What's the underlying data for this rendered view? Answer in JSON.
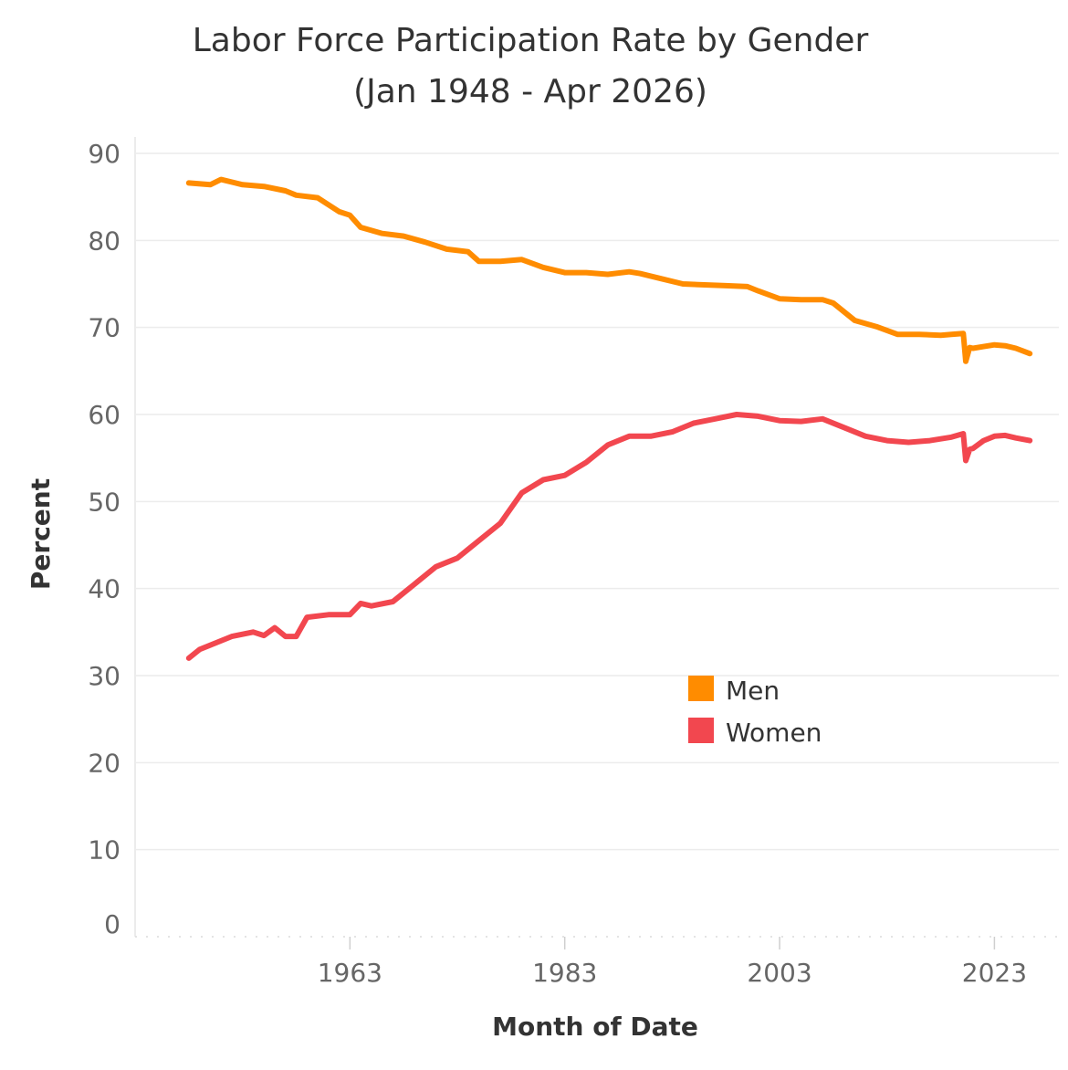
{
  "chart_data": {
    "type": "line",
    "title": [
      "Labor Force Participation Rate by Gender",
      "(Jan 1948 - Apr 2026)"
    ],
    "xlabel": "Month of Date",
    "ylabel": "Percent",
    "xlim": [
      1943,
      2029
    ],
    "ylim": [
      0,
      90
    ],
    "yticks": [
      0,
      10,
      20,
      30,
      40,
      50,
      60,
      70,
      80,
      90
    ],
    "xticks": [
      1963,
      1983,
      2003,
      2023
    ],
    "grid": true,
    "legend_position": "center-right",
    "series": [
      {
        "name": "Men",
        "color": "#ff8c00",
        "points": [
          [
            1948,
            86.6
          ],
          [
            1950,
            86.4
          ],
          [
            1951,
            87.0
          ],
          [
            1953,
            86.4
          ],
          [
            1955,
            86.2
          ],
          [
            1957,
            85.7
          ],
          [
            1958,
            85.2
          ],
          [
            1960,
            84.9
          ],
          [
            1962,
            83.3
          ],
          [
            1963,
            82.9
          ],
          [
            1964,
            81.5
          ],
          [
            1966,
            80.8
          ],
          [
            1968,
            80.5
          ],
          [
            1970,
            79.8
          ],
          [
            1972,
            79.0
          ],
          [
            1974,
            78.7
          ],
          [
            1975,
            77.6
          ],
          [
            1977,
            77.6
          ],
          [
            1979,
            77.8
          ],
          [
            1981,
            76.9
          ],
          [
            1983,
            76.3
          ],
          [
            1985,
            76.3
          ],
          [
            1987,
            76.1
          ],
          [
            1989,
            76.4
          ],
          [
            1990,
            76.2
          ],
          [
            1992,
            75.6
          ],
          [
            1994,
            75.0
          ],
          [
            1996,
            74.9
          ],
          [
            1998,
            74.8
          ],
          [
            2000,
            74.7
          ],
          [
            2001,
            74.2
          ],
          [
            2003,
            73.3
          ],
          [
            2005,
            73.2
          ],
          [
            2007,
            73.2
          ],
          [
            2008,
            72.8
          ],
          [
            2010,
            70.8
          ],
          [
            2012,
            70.1
          ],
          [
            2014,
            69.2
          ],
          [
            2016,
            69.2
          ],
          [
            2018,
            69.1
          ],
          [
            2019,
            69.2
          ],
          [
            2020.1,
            69.3
          ],
          [
            2020.33,
            66.1
          ],
          [
            2020.7,
            67.7
          ],
          [
            2021,
            67.6
          ],
          [
            2022,
            67.8
          ],
          [
            2023,
            68.0
          ],
          [
            2024,
            67.9
          ],
          [
            2025,
            67.6
          ],
          [
            2026.3,
            67.0
          ]
        ]
      },
      {
        "name": "Women",
        "color": "#f2474f",
        "points": [
          [
            1948,
            32.0
          ],
          [
            1949,
            33.0
          ],
          [
            1950,
            33.5
          ],
          [
            1952,
            34.5
          ],
          [
            1954,
            35.0
          ],
          [
            1955,
            34.6
          ],
          [
            1956,
            35.5
          ],
          [
            1957,
            34.5
          ],
          [
            1958,
            34.5
          ],
          [
            1959,
            36.7
          ],
          [
            1961,
            37.0
          ],
          [
            1963,
            37.0
          ],
          [
            1964,
            38.3
          ],
          [
            1965,
            38.0
          ],
          [
            1967,
            38.5
          ],
          [
            1969,
            40.5
          ],
          [
            1971,
            42.5
          ],
          [
            1973,
            43.5
          ],
          [
            1975,
            45.5
          ],
          [
            1977,
            47.5
          ],
          [
            1979,
            51.0
          ],
          [
            1981,
            52.5
          ],
          [
            1983,
            53.0
          ],
          [
            1985,
            54.5
          ],
          [
            1987,
            56.5
          ],
          [
            1989,
            57.5
          ],
          [
            1991,
            57.5
          ],
          [
            1993,
            58.0
          ],
          [
            1995,
            59.0
          ],
          [
            1997,
            59.5
          ],
          [
            1999,
            60.0
          ],
          [
            2001,
            59.8
          ],
          [
            2003,
            59.3
          ],
          [
            2005,
            59.2
          ],
          [
            2007,
            59.5
          ],
          [
            2009,
            58.5
          ],
          [
            2011,
            57.5
          ],
          [
            2013,
            57.0
          ],
          [
            2015,
            56.8
          ],
          [
            2017,
            57.0
          ],
          [
            2019,
            57.4
          ],
          [
            2020.1,
            57.8
          ],
          [
            2020.33,
            54.7
          ],
          [
            2020.7,
            56.0
          ],
          [
            2021,
            56.1
          ],
          [
            2022,
            57.0
          ],
          [
            2023,
            57.5
          ],
          [
            2024,
            57.6
          ],
          [
            2025,
            57.3
          ],
          [
            2026.3,
            57.0
          ]
        ]
      }
    ]
  }
}
